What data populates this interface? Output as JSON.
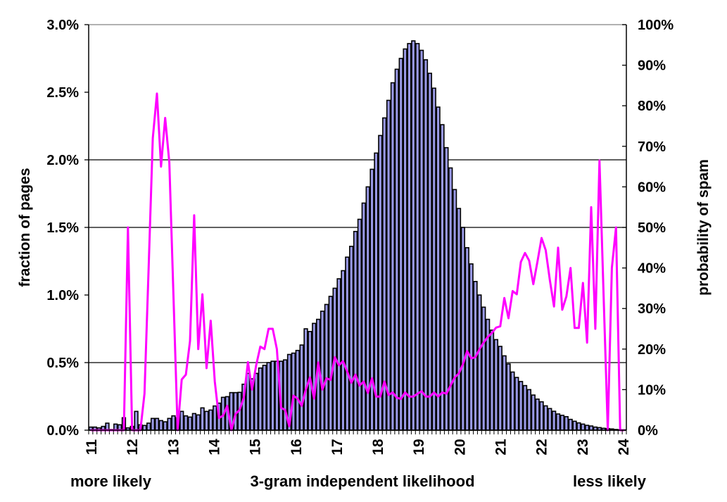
{
  "chart_data": {
    "type": "bar+line",
    "xlabel": "3-gram independent likelihood",
    "xlabel_left": "more likely",
    "xlabel_right": "less likely",
    "ylabel": "fraction of pages",
    "ylabel_right": "probability of spam",
    "xlim": [
      11,
      24
    ],
    "ylim": [
      0,
      3.0
    ],
    "ylim_right": [
      0,
      100
    ],
    "x_ticks": [
      "11",
      "12",
      "13",
      "14",
      "15",
      "16",
      "17",
      "18",
      "19",
      "20",
      "21",
      "22",
      "23",
      "24"
    ],
    "y_ticks": [
      "0.0%",
      "0.5%",
      "1.0%",
      "1.5%",
      "2.0%",
      "2.5%",
      "3.0%"
    ],
    "y_tick_values": [
      0,
      0.5,
      1.0,
      1.5,
      2.0,
      2.5,
      3.0
    ],
    "y_ticks_right": [
      "0%",
      "10%",
      "20%",
      "30%",
      "40%",
      "50%",
      "60%",
      "70%",
      "80%",
      "90%",
      "100%"
    ],
    "grid_levels": [
      0.5,
      1.5,
      2.0
    ],
    "bin_width": 0.1,
    "colors": {
      "bar_fill": "#9a9ae6",
      "bar_stroke": "#000000",
      "line": "#ff00ff"
    },
    "series": [
      {
        "name": "fraction of pages (%)",
        "type": "bar",
        "values": [
          0.023,
          0.023,
          0.017,
          0.028,
          0.052,
          0.005,
          0.045,
          0.04,
          0.092,
          0.017,
          0.028,
          0.139,
          0.04,
          0.035,
          0.052,
          0.087,
          0.087,
          0.071,
          0.062,
          0.087,
          0.106,
          0.092,
          0.139,
          0.106,
          0.097,
          0.123,
          0.113,
          0.165,
          0.139,
          0.149,
          0.179,
          0.2,
          0.243,
          0.248,
          0.278,
          0.278,
          0.28,
          0.34,
          0.42,
          0.38,
          0.42,
          0.46,
          0.48,
          0.5,
          0.51,
          0.51,
          0.51,
          0.52,
          0.56,
          0.57,
          0.59,
          0.63,
          0.75,
          0.73,
          0.79,
          0.82,
          0.88,
          0.93,
          0.99,
          1.05,
          1.12,
          1.18,
          1.28,
          1.36,
          1.47,
          1.56,
          1.68,
          1.8,
          1.93,
          2.05,
          2.18,
          2.31,
          2.44,
          2.57,
          2.67,
          2.75,
          2.82,
          2.86,
          2.88,
          2.86,
          2.81,
          2.74,
          2.64,
          2.53,
          2.39,
          2.26,
          2.09,
          1.94,
          1.78,
          1.64,
          1.5,
          1.35,
          1.23,
          1.1,
          1.0,
          0.91,
          0.82,
          0.74,
          0.67,
          0.62,
          0.55,
          0.49,
          0.43,
          0.39,
          0.36,
          0.33,
          0.3,
          0.26,
          0.23,
          0.21,
          0.18,
          0.16,
          0.14,
          0.12,
          0.11,
          0.1,
          0.08,
          0.066,
          0.054,
          0.045,
          0.036,
          0.031,
          0.023,
          0.019,
          0.014,
          0.012,
          0.009,
          0.005,
          0.003,
          0.002
        ]
      },
      {
        "name": "probability of spam (%)",
        "type": "line",
        "axis": "right",
        "values": [
          0,
          0,
          0,
          0,
          0,
          0,
          0,
          0,
          0,
          50,
          0,
          0,
          0,
          9,
          40,
          72,
          83,
          65,
          77,
          66,
          33,
          0,
          12.5,
          13.7,
          22,
          53,
          20,
          33.5,
          15.3,
          27,
          12,
          3,
          3.6,
          6,
          0,
          4,
          5,
          8,
          16.8,
          10,
          16,
          20.6,
          20,
          25,
          25,
          20,
          5.5,
          5,
          1,
          8.5,
          7.8,
          6,
          10,
          13,
          7.8,
          16.7,
          10,
          12.8,
          12.4,
          18,
          16,
          17,
          14.5,
          11.7,
          13.7,
          11,
          12,
          9.2,
          12.8,
          8.3,
          8.3,
          12,
          8.7,
          9.3,
          8,
          7.7,
          9.3,
          8.3,
          8.3,
          9,
          9.6,
          8.3,
          8.3,
          9.3,
          8.3,
          9.3,
          9,
          11,
          13,
          14,
          16.3,
          19.5,
          17.7,
          18,
          20,
          21.6,
          23,
          24,
          25.3,
          25.6,
          32.6,
          27.6,
          34.3,
          33.5,
          41.5,
          43.7,
          41.8,
          36,
          41.5,
          47.4,
          44.4,
          37,
          30.5,
          45,
          29.7,
          33,
          40,
          25.2,
          25.2,
          36.3,
          21.6,
          55,
          25,
          66.5,
          33,
          0,
          40,
          50,
          0,
          0
        ]
      }
    ]
  }
}
